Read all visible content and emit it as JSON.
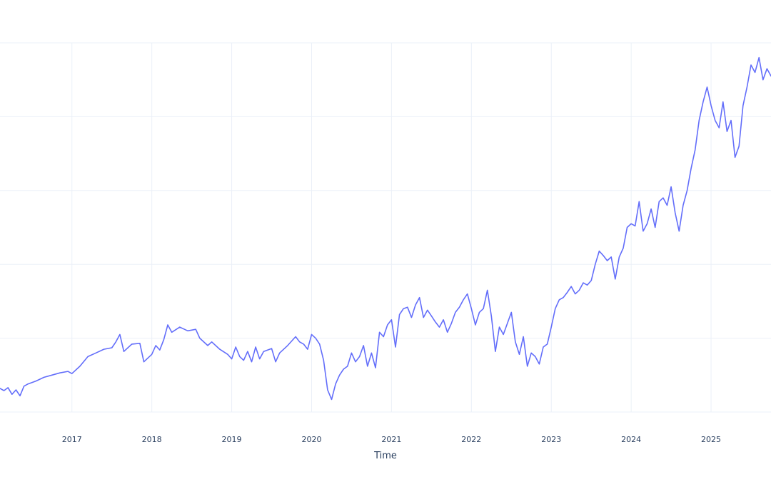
{
  "chart_data": {
    "type": "line",
    "title": "",
    "xlabel": "Time",
    "ylabel": "",
    "xlim": [
      2016.1,
      2025.75
    ],
    "ylim": [
      0,
      5
    ],
    "x_ticks": [
      2017,
      2018,
      2019,
      2020,
      2021,
      2022,
      2023,
      2024,
      2025
    ],
    "x_tick_labels": [
      "2017",
      "2018",
      "2019",
      "2020",
      "2021",
      "2022",
      "2023",
      "2024",
      "2025"
    ],
    "y_gridlines": [
      0,
      1,
      2,
      3,
      4,
      5
    ],
    "grid": true,
    "legend": "none",
    "colors": {
      "line": "#636efa",
      "grid": "#ebf0f8",
      "text": "#2a3f5f",
      "background": "#ffffff"
    },
    "series": [
      {
        "points": [
          [
            2016.1,
            0.32
          ],
          [
            2016.15,
            0.29
          ],
          [
            2016.2,
            0.33
          ],
          [
            2016.25,
            0.24
          ],
          [
            2016.3,
            0.3
          ],
          [
            2016.35,
            0.22
          ],
          [
            2016.4,
            0.35
          ],
          [
            2016.45,
            0.38
          ],
          [
            2016.55,
            0.42
          ],
          [
            2016.65,
            0.47
          ],
          [
            2016.75,
            0.5
          ],
          [
            2016.85,
            0.53
          ],
          [
            2016.95,
            0.55
          ],
          [
            2017.0,
            0.52
          ],
          [
            2017.1,
            0.62
          ],
          [
            2017.2,
            0.75
          ],
          [
            2017.3,
            0.8
          ],
          [
            2017.4,
            0.85
          ],
          [
            2017.5,
            0.87
          ],
          [
            2017.55,
            0.95
          ],
          [
            2017.6,
            1.05
          ],
          [
            2017.65,
            0.82
          ],
          [
            2017.75,
            0.92
          ],
          [
            2017.85,
            0.93
          ],
          [
            2017.9,
            0.68
          ],
          [
            2018.0,
            0.78
          ],
          [
            2018.05,
            0.9
          ],
          [
            2018.1,
            0.84
          ],
          [
            2018.15,
            0.98
          ],
          [
            2018.2,
            1.18
          ],
          [
            2018.25,
            1.08
          ],
          [
            2018.35,
            1.15
          ],
          [
            2018.45,
            1.1
          ],
          [
            2018.55,
            1.12
          ],
          [
            2018.6,
            1.0
          ],
          [
            2018.7,
            0.9
          ],
          [
            2018.75,
            0.95
          ],
          [
            2018.85,
            0.85
          ],
          [
            2018.95,
            0.78
          ],
          [
            2019.0,
            0.72
          ],
          [
            2019.05,
            0.88
          ],
          [
            2019.1,
            0.75
          ],
          [
            2019.15,
            0.7
          ],
          [
            2019.2,
            0.82
          ],
          [
            2019.25,
            0.68
          ],
          [
            2019.3,
            0.88
          ],
          [
            2019.35,
            0.72
          ],
          [
            2019.4,
            0.82
          ],
          [
            2019.5,
            0.86
          ],
          [
            2019.55,
            0.68
          ],
          [
            2019.6,
            0.8
          ],
          [
            2019.7,
            0.9
          ],
          [
            2019.8,
            1.02
          ],
          [
            2019.85,
            0.95
          ],
          [
            2019.9,
            0.92
          ],
          [
            2019.95,
            0.85
          ],
          [
            2020.0,
            1.05
          ],
          [
            2020.05,
            1.0
          ],
          [
            2020.1,
            0.92
          ],
          [
            2020.15,
            0.7
          ],
          [
            2020.2,
            0.3
          ],
          [
            2020.25,
            0.17
          ],
          [
            2020.3,
            0.38
          ],
          [
            2020.35,
            0.5
          ],
          [
            2020.4,
            0.58
          ],
          [
            2020.45,
            0.62
          ],
          [
            2020.5,
            0.8
          ],
          [
            2020.55,
            0.68
          ],
          [
            2020.6,
            0.75
          ],
          [
            2020.65,
            0.9
          ],
          [
            2020.7,
            0.62
          ],
          [
            2020.75,
            0.8
          ],
          [
            2020.8,
            0.6
          ],
          [
            2020.85,
            1.08
          ],
          [
            2020.9,
            1.02
          ],
          [
            2020.95,
            1.18
          ],
          [
            2021.0,
            1.25
          ],
          [
            2021.05,
            0.88
          ],
          [
            2021.1,
            1.32
          ],
          [
            2021.15,
            1.4
          ],
          [
            2021.2,
            1.42
          ],
          [
            2021.25,
            1.28
          ],
          [
            2021.3,
            1.45
          ],
          [
            2021.35,
            1.55
          ],
          [
            2021.4,
            1.28
          ],
          [
            2021.45,
            1.38
          ],
          [
            2021.5,
            1.3
          ],
          [
            2021.55,
            1.22
          ],
          [
            2021.6,
            1.15
          ],
          [
            2021.65,
            1.25
          ],
          [
            2021.7,
            1.08
          ],
          [
            2021.75,
            1.2
          ],
          [
            2021.8,
            1.35
          ],
          [
            2021.85,
            1.42
          ],
          [
            2021.9,
            1.52
          ],
          [
            2021.95,
            1.6
          ],
          [
            2022.0,
            1.4
          ],
          [
            2022.05,
            1.18
          ],
          [
            2022.1,
            1.35
          ],
          [
            2022.15,
            1.4
          ],
          [
            2022.2,
            1.65
          ],
          [
            2022.25,
            1.3
          ],
          [
            2022.3,
            0.82
          ],
          [
            2022.35,
            1.15
          ],
          [
            2022.4,
            1.05
          ],
          [
            2022.45,
            1.2
          ],
          [
            2022.5,
            1.35
          ],
          [
            2022.55,
            0.95
          ],
          [
            2022.6,
            0.78
          ],
          [
            2022.65,
            1.02
          ],
          [
            2022.7,
            0.62
          ],
          [
            2022.75,
            0.8
          ],
          [
            2022.8,
            0.75
          ],
          [
            2022.85,
            0.65
          ],
          [
            2022.9,
            0.88
          ],
          [
            2022.95,
            0.92
          ],
          [
            2023.0,
            1.15
          ],
          [
            2023.05,
            1.4
          ],
          [
            2023.1,
            1.52
          ],
          [
            2023.15,
            1.55
          ],
          [
            2023.2,
            1.62
          ],
          [
            2023.25,
            1.7
          ],
          [
            2023.3,
            1.6
          ],
          [
            2023.35,
            1.65
          ],
          [
            2023.4,
            1.75
          ],
          [
            2023.45,
            1.72
          ],
          [
            2023.5,
            1.78
          ],
          [
            2023.55,
            2.0
          ],
          [
            2023.6,
            2.18
          ],
          [
            2023.65,
            2.12
          ],
          [
            2023.7,
            2.05
          ],
          [
            2023.75,
            2.1
          ],
          [
            2023.8,
            1.8
          ],
          [
            2023.85,
            2.1
          ],
          [
            2023.9,
            2.22
          ],
          [
            2023.95,
            2.5
          ],
          [
            2024.0,
            2.55
          ],
          [
            2024.05,
            2.52
          ],
          [
            2024.1,
            2.85
          ],
          [
            2024.15,
            2.45
          ],
          [
            2024.2,
            2.55
          ],
          [
            2024.25,
            2.75
          ],
          [
            2024.3,
            2.5
          ],
          [
            2024.35,
            2.85
          ],
          [
            2024.4,
            2.9
          ],
          [
            2024.45,
            2.8
          ],
          [
            2024.5,
            3.05
          ],
          [
            2024.55,
            2.7
          ],
          [
            2024.6,
            2.45
          ],
          [
            2024.65,
            2.8
          ],
          [
            2024.7,
            3.0
          ],
          [
            2024.75,
            3.3
          ],
          [
            2024.8,
            3.55
          ],
          [
            2024.85,
            3.95
          ],
          [
            2024.9,
            4.2
          ],
          [
            2024.95,
            4.4
          ],
          [
            2025.0,
            4.15
          ],
          [
            2025.05,
            3.95
          ],
          [
            2025.1,
            3.85
          ],
          [
            2025.15,
            4.2
          ],
          [
            2025.2,
            3.8
          ],
          [
            2025.25,
            3.95
          ],
          [
            2025.3,
            3.45
          ],
          [
            2025.35,
            3.6
          ],
          [
            2025.4,
            4.15
          ],
          [
            2025.45,
            4.4
          ],
          [
            2025.5,
            4.7
          ],
          [
            2025.55,
            4.6
          ],
          [
            2025.6,
            4.8
          ],
          [
            2025.65,
            4.5
          ],
          [
            2025.7,
            4.65
          ],
          [
            2025.75,
            4.55
          ]
        ]
      }
    ]
  }
}
